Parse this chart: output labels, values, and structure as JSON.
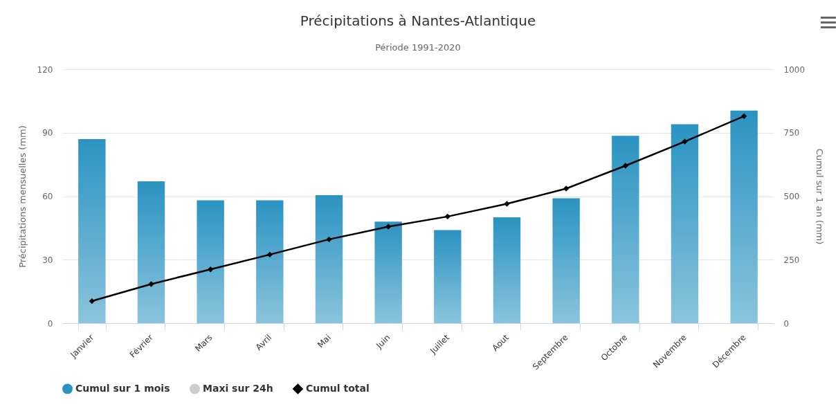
{
  "chart_data": {
    "type": "bar",
    "title": "Précipitations à Nantes-Atlantique",
    "subtitle": "Période 1991-2020",
    "ylabel": "Précipitations mensuelles (mm)",
    "y2label": "Cumul sur 1 an (mm)",
    "categories": [
      "Janvier",
      "Février",
      "Mars",
      "Avril",
      "Mai",
      "Juin",
      "Juillet",
      "Aout",
      "Septembre",
      "Octobre",
      "Novembre",
      "Décembre"
    ],
    "series": [
      {
        "name": "Cumul sur 1 mois",
        "color": "#2b93c2",
        "values": [
          87,
          67,
          58,
          58,
          60.5,
          48,
          44,
          50,
          59,
          88.5,
          94,
          100.5
        ]
      },
      {
        "name": "Maxi sur 24h",
        "type": "line",
        "color": "#cccccc",
        "values": [
          null,
          null,
          null,
          null,
          null,
          null,
          null,
          null,
          null,
          null,
          null,
          null
        ]
      },
      {
        "name": "Cumul total",
        "type": "line",
        "axis": "y2",
        "color": "#000000",
        "values": [
          87,
          154,
          212,
          270,
          330,
          380,
          420,
          470,
          530,
          620,
          715,
          815
        ]
      }
    ],
    "ylim": [
      0,
      120
    ],
    "yticks": [
      0,
      30,
      60,
      90,
      120
    ],
    "y2lim": [
      0,
      1000
    ],
    "y2ticks": [
      0,
      250,
      500,
      750,
      {
        "value": 1000,
        "label": "1000"
      }
    ],
    "grid": "y",
    "legend": "bottom",
    "marker": "diamond"
  }
}
